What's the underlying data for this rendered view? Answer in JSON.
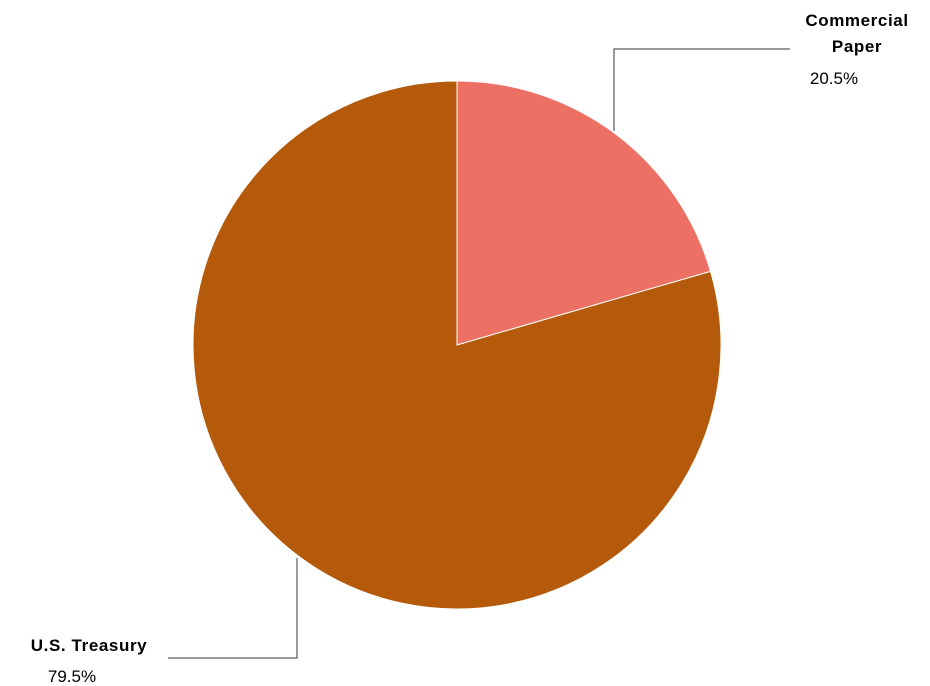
{
  "chart_data": {
    "type": "pie",
    "title": "",
    "start_angle_deg": 0,
    "direction": "clockwise",
    "slices": [
      {
        "label_lines": [
          "Commercial",
          "Paper"
        ],
        "value": 20.5,
        "value_label": "20.5%",
        "color": "#EC7063"
      },
      {
        "label_lines": [
          "U.S. Treasury"
        ],
        "value": 79.5,
        "value_label": "79.5%",
        "color": "#B45A0A"
      }
    ],
    "slice_border_color": "#ffffff",
    "leader_line_color": "#5a5a5a"
  }
}
